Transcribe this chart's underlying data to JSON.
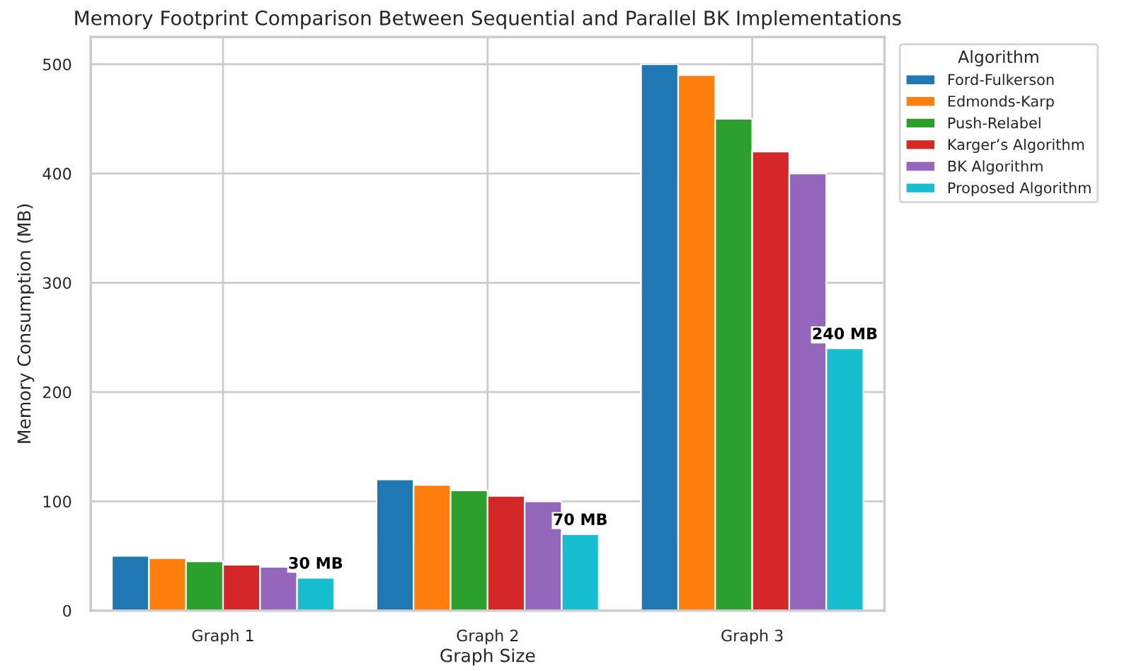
{
  "chart_data": {
    "type": "bar",
    "title": "Memory Footprint Comparison Between Sequential and Parallel BK Implementations",
    "xlabel": "Graph Size",
    "ylabel": "Memory Consumption (MB)",
    "legend_title": "Algorithm",
    "categories": [
      "Graph 1",
      "Graph 2",
      "Graph 3"
    ],
    "series": [
      {
        "name": "Ford-Fulkerson",
        "color": "#1f77b4",
        "values": [
          50,
          120,
          500
        ]
      },
      {
        "name": "Edmonds-Karp",
        "color": "#ff7f0e",
        "values": [
          48,
          115,
          490
        ]
      },
      {
        "name": "Push-Relabel",
        "color": "#2ca02c",
        "values": [
          45,
          110,
          450
        ]
      },
      {
        "name": "Karger’s Algorithm",
        "color": "#d62728",
        "values": [
          42,
          105,
          420
        ]
      },
      {
        "name": "BK Algorithm",
        "color": "#9467bd",
        "values": [
          40,
          100,
          400
        ]
      },
      {
        "name": "Proposed Algorithm",
        "color": "#17becf",
        "values": [
          30,
          70,
          240
        ],
        "value_labels": [
          "30 MB",
          "70 MB",
          "240 MB"
        ]
      }
    ],
    "ylim": [
      0,
      525
    ],
    "yticks": [
      0,
      100,
      200,
      300,
      400,
      500
    ],
    "grid": true,
    "legend": "top right"
  }
}
